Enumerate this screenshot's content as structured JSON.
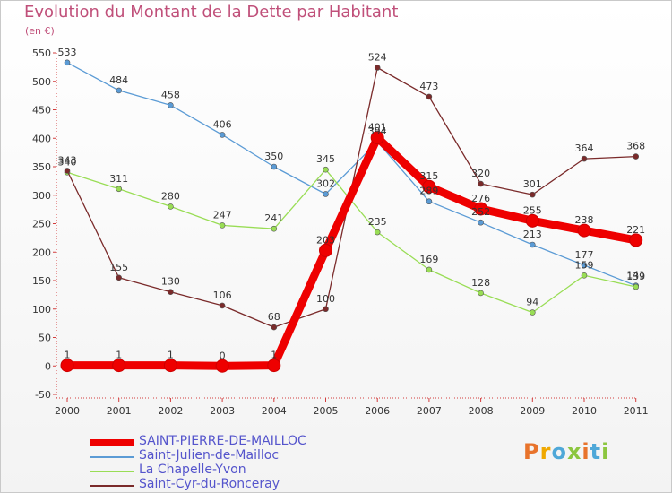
{
  "title": "Evolution du Montant de la Dette par Habitant",
  "unit_label": "(en €)",
  "logo": {
    "text": "Proxiti",
    "colors": [
      "#e8732b",
      "#f0a800",
      "#4fa8d8",
      "#8cc63f",
      "#e8732b",
      "#4fa8d8",
      "#8cc63f"
    ]
  },
  "chart_data": {
    "type": "line",
    "x": [
      "2000",
      "2001",
      "2002",
      "2003",
      "2004",
      "2005",
      "2006",
      "2007",
      "2008",
      "2009",
      "2010",
      "2011"
    ],
    "ylim": [
      -50,
      550
    ],
    "yticks": [
      -50,
      0,
      50,
      100,
      150,
      200,
      250,
      300,
      350,
      400,
      450,
      500,
      550
    ],
    "grid": "none",
    "legend_position": "bottom-left",
    "series": [
      {
        "name": "SAINT-PIERRE-DE-MAILLOC",
        "color": "#ee0000",
        "highlight": true,
        "values": [
          1,
          1,
          1,
          0,
          1,
          203,
          401,
          315,
          276,
          255,
          238,
          221
        ],
        "labels": [
          "1",
          "1",
          "1",
          "0",
          "1",
          "203",
          "401",
          "315",
          "276",
          "255",
          "238",
          "221"
        ]
      },
      {
        "name": "Saint-Julien-de-Mailloc",
        "color": "#5b9bd5",
        "values": [
          533,
          484,
          458,
          406,
          350,
          302,
          394,
          289,
          252,
          213,
          177,
          141
        ],
        "labels": [
          "533",
          "484",
          "458",
          "406",
          "350",
          "302",
          "394",
          "289",
          "252",
          "213",
          "177",
          "141"
        ]
      },
      {
        "name": "La Chapelle-Yvon",
        "color": "#99dd55",
        "values": [
          340,
          311,
          280,
          247,
          241,
          345,
          235,
          169,
          128,
          94,
          159,
          139
        ],
        "labels": [
          "340",
          "311",
          "280",
          "247",
          "241",
          "345",
          "235",
          "169",
          "128",
          "94",
          "159",
          "139"
        ]
      },
      {
        "name": "Saint-Cyr-du-Ronceray",
        "color": "#7a2a2a",
        "values": [
          343,
          155,
          130,
          106,
          68,
          100,
          524,
          473,
          320,
          301,
          364,
          368
        ],
        "labels": [
          "343",
          "155",
          "130",
          "106",
          "68",
          "100",
          "524",
          "473",
          "320",
          "301",
          "364",
          "368"
        ]
      }
    ]
  }
}
